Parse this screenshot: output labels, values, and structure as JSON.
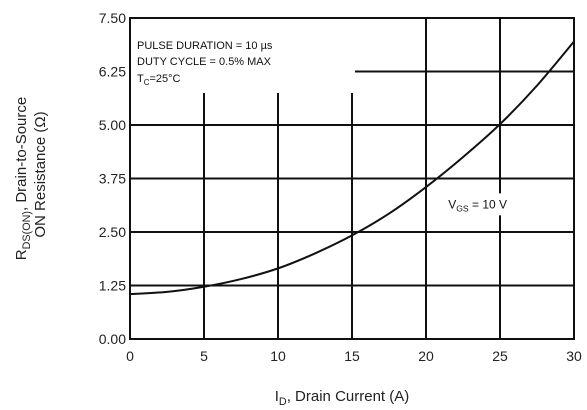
{
  "chart_data": {
    "type": "line",
    "xlabel": {
      "main": "I",
      "sub": "D",
      "rest": ", Drain Current (A)"
    },
    "ylabel": {
      "line1_main": "R",
      "line1_sub": "DS(ON)",
      "line1_rest": ", Drain-to-Source",
      "line2": "ON Resistance (Ω)"
    },
    "xlim": [
      0,
      30
    ],
    "ylim": [
      0,
      7.5
    ],
    "x_ticks": [
      0,
      5,
      10,
      15,
      20,
      25,
      30
    ],
    "x_tick_labels": [
      "0",
      "5",
      "10",
      "15",
      "20",
      "25",
      "30"
    ],
    "y_ticks": [
      0,
      1.25,
      2.5,
      3.75,
      5.0,
      6.25,
      7.5
    ],
    "y_tick_labels": [
      "0.00",
      "1.25",
      "2.50",
      "3.75",
      "5.00",
      "6.25",
      "7.50"
    ],
    "grid": true,
    "annotations": {
      "line1": "PULSE DURATION = 10 µs",
      "line2": "DUTY CYCLE = 0.5% MAX",
      "line3_main": "T",
      "line3_sub": "C",
      "line3_rest": "=25°C"
    },
    "series": [
      {
        "label_main": "V",
        "label_sub": "GS",
        "label_rest": " = 10 V",
        "x": [
          0,
          2.5,
          5,
          7.5,
          10,
          12.5,
          15,
          17.5,
          20,
          22.5,
          25,
          27.5,
          30
        ],
        "y": [
          1.05,
          1.1,
          1.22,
          1.4,
          1.65,
          2.0,
          2.42,
          2.93,
          3.55,
          4.25,
          5.02,
          5.92,
          6.95
        ],
        "color": "#111111"
      }
    ]
  }
}
